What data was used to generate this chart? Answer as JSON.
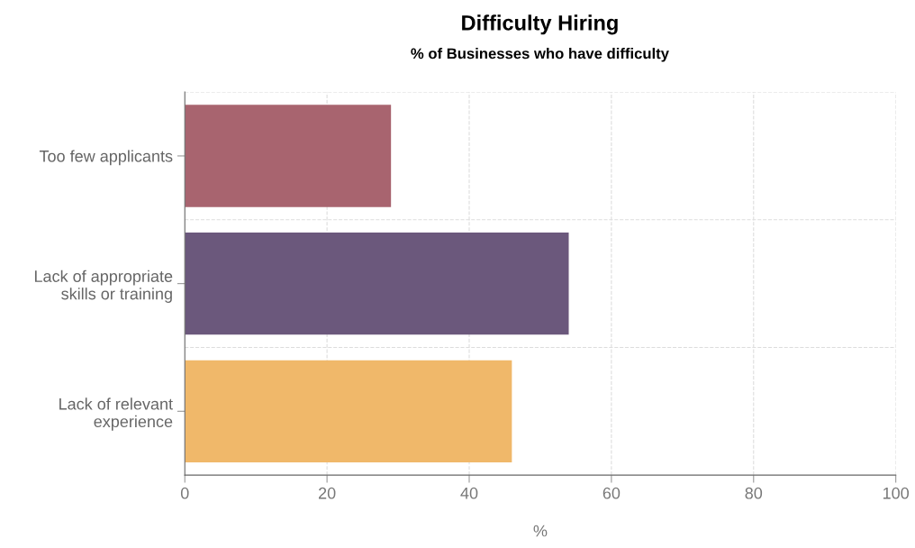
{
  "chart_data": {
    "type": "bar",
    "orientation": "horizontal",
    "title": "Difficulty Hiring",
    "subtitle": "% of Businesses who have difficulty",
    "xlabel": "%",
    "categories": [
      "Too few applicants",
      "Lack of appropriate\nskills or training",
      "Lack of relevant\nexperience"
    ],
    "values": [
      29,
      54,
      46
    ],
    "colors": [
      "#a8646f",
      "#6b587c",
      "#f0b86a"
    ],
    "xlim": [
      0,
      100
    ],
    "xticks": [
      0,
      20,
      40,
      60,
      80,
      100
    ],
    "grid": true
  }
}
